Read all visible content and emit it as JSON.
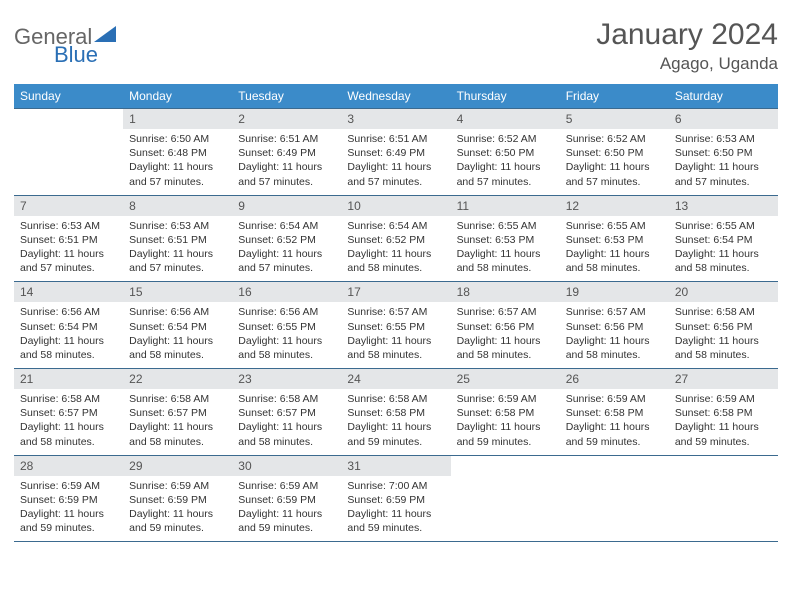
{
  "colors": {
    "header_bg": "#3b8bc9",
    "header_text": "#ffffff",
    "daynum_bg": "#e4e6e8",
    "daynum_text": "#555555",
    "data_text": "#333333",
    "rule": "#3b6a8f",
    "logo_gray": "#808080",
    "logo_blue": "#2a6fb5"
  },
  "logo": {
    "text1": "General",
    "text2": "Blue"
  },
  "title": {
    "month": "January 2024",
    "location": "Agago, Uganda"
  },
  "dow": [
    "Sunday",
    "Monday",
    "Tuesday",
    "Wednesday",
    "Thursday",
    "Friday",
    "Saturday"
  ],
  "weeks": [
    [
      null,
      {
        "n": "1",
        "sr": "Sunrise: 6:50 AM",
        "ss": "Sunset: 6:48 PM",
        "d1": "Daylight: 11 hours",
        "d2": "and 57 minutes."
      },
      {
        "n": "2",
        "sr": "Sunrise: 6:51 AM",
        "ss": "Sunset: 6:49 PM",
        "d1": "Daylight: 11 hours",
        "d2": "and 57 minutes."
      },
      {
        "n": "3",
        "sr": "Sunrise: 6:51 AM",
        "ss": "Sunset: 6:49 PM",
        "d1": "Daylight: 11 hours",
        "d2": "and 57 minutes."
      },
      {
        "n": "4",
        "sr": "Sunrise: 6:52 AM",
        "ss": "Sunset: 6:50 PM",
        "d1": "Daylight: 11 hours",
        "d2": "and 57 minutes."
      },
      {
        "n": "5",
        "sr": "Sunrise: 6:52 AM",
        "ss": "Sunset: 6:50 PM",
        "d1": "Daylight: 11 hours",
        "d2": "and 57 minutes."
      },
      {
        "n": "6",
        "sr": "Sunrise: 6:53 AM",
        "ss": "Sunset: 6:50 PM",
        "d1": "Daylight: 11 hours",
        "d2": "and 57 minutes."
      }
    ],
    [
      {
        "n": "7",
        "sr": "Sunrise: 6:53 AM",
        "ss": "Sunset: 6:51 PM",
        "d1": "Daylight: 11 hours",
        "d2": "and 57 minutes."
      },
      {
        "n": "8",
        "sr": "Sunrise: 6:53 AM",
        "ss": "Sunset: 6:51 PM",
        "d1": "Daylight: 11 hours",
        "d2": "and 57 minutes."
      },
      {
        "n": "9",
        "sr": "Sunrise: 6:54 AM",
        "ss": "Sunset: 6:52 PM",
        "d1": "Daylight: 11 hours",
        "d2": "and 57 minutes."
      },
      {
        "n": "10",
        "sr": "Sunrise: 6:54 AM",
        "ss": "Sunset: 6:52 PM",
        "d1": "Daylight: 11 hours",
        "d2": "and 58 minutes."
      },
      {
        "n": "11",
        "sr": "Sunrise: 6:55 AM",
        "ss": "Sunset: 6:53 PM",
        "d1": "Daylight: 11 hours",
        "d2": "and 58 minutes."
      },
      {
        "n": "12",
        "sr": "Sunrise: 6:55 AM",
        "ss": "Sunset: 6:53 PM",
        "d1": "Daylight: 11 hours",
        "d2": "and 58 minutes."
      },
      {
        "n": "13",
        "sr": "Sunrise: 6:55 AM",
        "ss": "Sunset: 6:54 PM",
        "d1": "Daylight: 11 hours",
        "d2": "and 58 minutes."
      }
    ],
    [
      {
        "n": "14",
        "sr": "Sunrise: 6:56 AM",
        "ss": "Sunset: 6:54 PM",
        "d1": "Daylight: 11 hours",
        "d2": "and 58 minutes."
      },
      {
        "n": "15",
        "sr": "Sunrise: 6:56 AM",
        "ss": "Sunset: 6:54 PM",
        "d1": "Daylight: 11 hours",
        "d2": "and 58 minutes."
      },
      {
        "n": "16",
        "sr": "Sunrise: 6:56 AM",
        "ss": "Sunset: 6:55 PM",
        "d1": "Daylight: 11 hours",
        "d2": "and 58 minutes."
      },
      {
        "n": "17",
        "sr": "Sunrise: 6:57 AM",
        "ss": "Sunset: 6:55 PM",
        "d1": "Daylight: 11 hours",
        "d2": "and 58 minutes."
      },
      {
        "n": "18",
        "sr": "Sunrise: 6:57 AM",
        "ss": "Sunset: 6:56 PM",
        "d1": "Daylight: 11 hours",
        "d2": "and 58 minutes."
      },
      {
        "n": "19",
        "sr": "Sunrise: 6:57 AM",
        "ss": "Sunset: 6:56 PM",
        "d1": "Daylight: 11 hours",
        "d2": "and 58 minutes."
      },
      {
        "n": "20",
        "sr": "Sunrise: 6:58 AM",
        "ss": "Sunset: 6:56 PM",
        "d1": "Daylight: 11 hours",
        "d2": "and 58 minutes."
      }
    ],
    [
      {
        "n": "21",
        "sr": "Sunrise: 6:58 AM",
        "ss": "Sunset: 6:57 PM",
        "d1": "Daylight: 11 hours",
        "d2": "and 58 minutes."
      },
      {
        "n": "22",
        "sr": "Sunrise: 6:58 AM",
        "ss": "Sunset: 6:57 PM",
        "d1": "Daylight: 11 hours",
        "d2": "and 58 minutes."
      },
      {
        "n": "23",
        "sr": "Sunrise: 6:58 AM",
        "ss": "Sunset: 6:57 PM",
        "d1": "Daylight: 11 hours",
        "d2": "and 58 minutes."
      },
      {
        "n": "24",
        "sr": "Sunrise: 6:58 AM",
        "ss": "Sunset: 6:58 PM",
        "d1": "Daylight: 11 hours",
        "d2": "and 59 minutes."
      },
      {
        "n": "25",
        "sr": "Sunrise: 6:59 AM",
        "ss": "Sunset: 6:58 PM",
        "d1": "Daylight: 11 hours",
        "d2": "and 59 minutes."
      },
      {
        "n": "26",
        "sr": "Sunrise: 6:59 AM",
        "ss": "Sunset: 6:58 PM",
        "d1": "Daylight: 11 hours",
        "d2": "and 59 minutes."
      },
      {
        "n": "27",
        "sr": "Sunrise: 6:59 AM",
        "ss": "Sunset: 6:58 PM",
        "d1": "Daylight: 11 hours",
        "d2": "and 59 minutes."
      }
    ],
    [
      {
        "n": "28",
        "sr": "Sunrise: 6:59 AM",
        "ss": "Sunset: 6:59 PM",
        "d1": "Daylight: 11 hours",
        "d2": "and 59 minutes."
      },
      {
        "n": "29",
        "sr": "Sunrise: 6:59 AM",
        "ss": "Sunset: 6:59 PM",
        "d1": "Daylight: 11 hours",
        "d2": "and 59 minutes."
      },
      {
        "n": "30",
        "sr": "Sunrise: 6:59 AM",
        "ss": "Sunset: 6:59 PM",
        "d1": "Daylight: 11 hours",
        "d2": "and 59 minutes."
      },
      {
        "n": "31",
        "sr": "Sunrise: 7:00 AM",
        "ss": "Sunset: 6:59 PM",
        "d1": "Daylight: 11 hours",
        "d2": "and 59 minutes."
      },
      null,
      null,
      null
    ]
  ]
}
